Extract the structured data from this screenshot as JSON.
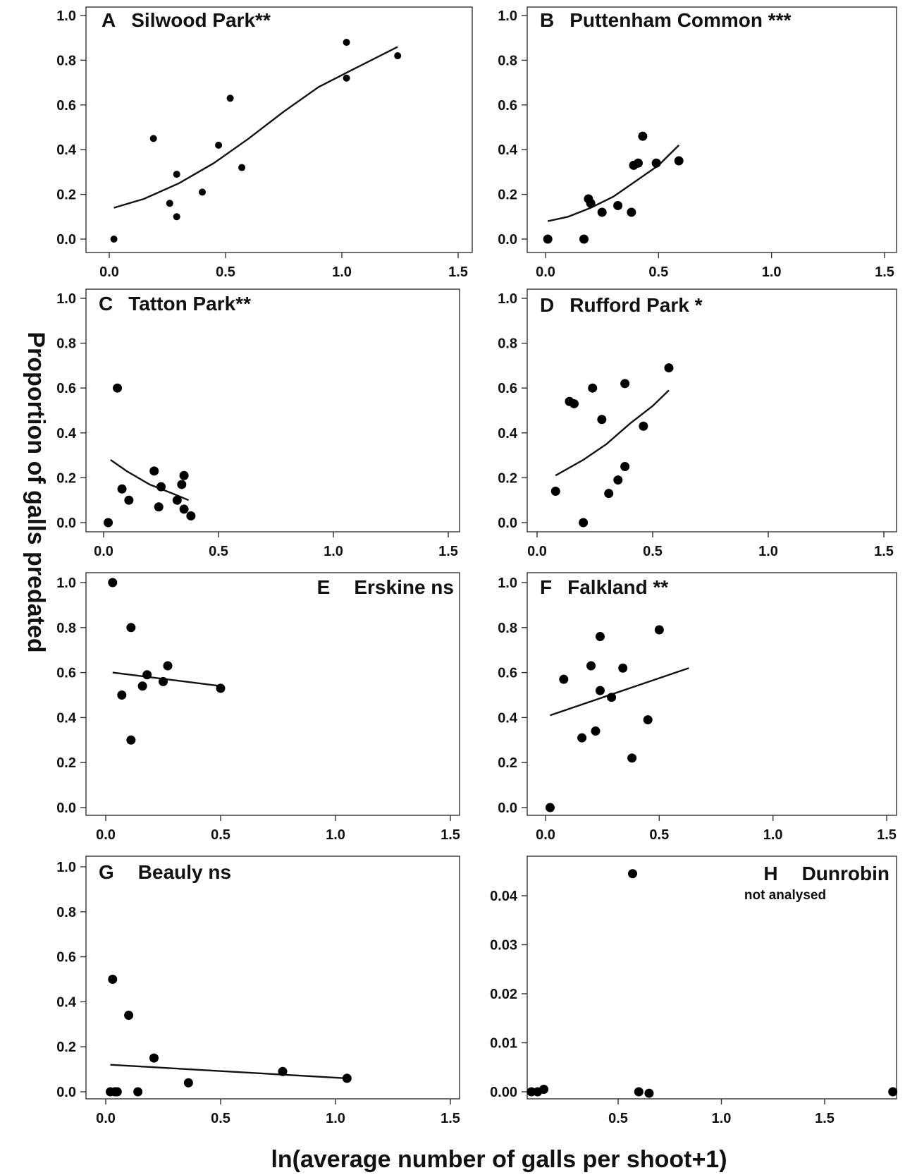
{
  "ylabel": "Proportion of galls predated",
  "xlabel": "ln(average number of galls per shoot+1)",
  "chart_data": [
    {
      "type": "scatter",
      "letter": "A",
      "title": "Silwood Park**",
      "subtitle": "",
      "xlim": [
        0,
        1.5
      ],
      "ylim": [
        0,
        1
      ],
      "xticks": [
        "0.0",
        "0.5",
        "1.0",
        "1.5"
      ],
      "yticks": [
        "0.0",
        "0.2",
        "0.4",
        "0.6",
        "0.8",
        "1.0"
      ],
      "points": [
        [
          0.02,
          0.0
        ],
        [
          0.19,
          0.45
        ],
        [
          0.26,
          0.16
        ],
        [
          0.29,
          0.29
        ],
        [
          0.29,
          0.1
        ],
        [
          0.4,
          0.21
        ],
        [
          0.47,
          0.42
        ],
        [
          0.52,
          0.63
        ],
        [
          0.57,
          0.32
        ],
        [
          1.02,
          0.88
        ],
        [
          1.02,
          0.72
        ],
        [
          1.24,
          0.82
        ]
      ],
      "fit": [
        [
          0.02,
          0.14
        ],
        [
          0.15,
          0.18
        ],
        [
          0.3,
          0.25
        ],
        [
          0.45,
          0.34
        ],
        [
          0.6,
          0.45
        ],
        [
          0.75,
          0.57
        ],
        [
          0.9,
          0.68
        ],
        [
          1.05,
          0.76
        ],
        [
          1.24,
          0.86
        ]
      ]
    },
    {
      "type": "scatter",
      "letter": "B",
      "title": "Puttenham Common ***",
      "subtitle": "",
      "xlim": [
        0,
        1.5
      ],
      "ylim": [
        0,
        1
      ],
      "xticks": [
        "0.0",
        "0.5",
        "1.0",
        "1.5"
      ],
      "yticks": [
        "0.0",
        "0.2",
        "0.4",
        "0.6",
        "0.8",
        "1.0"
      ],
      "points": [
        [
          0.01,
          0.0
        ],
        [
          0.17,
          0.0
        ],
        [
          0.19,
          0.18
        ],
        [
          0.2,
          0.16
        ],
        [
          0.25,
          0.12
        ],
        [
          0.32,
          0.15
        ],
        [
          0.38,
          0.12
        ],
        [
          0.39,
          0.33
        ],
        [
          0.41,
          0.34
        ],
        [
          0.43,
          0.46
        ],
        [
          0.49,
          0.34
        ],
        [
          0.59,
          0.35
        ]
      ],
      "fit": [
        [
          0.01,
          0.08
        ],
        [
          0.1,
          0.1
        ],
        [
          0.2,
          0.14
        ],
        [
          0.3,
          0.19
        ],
        [
          0.4,
          0.26
        ],
        [
          0.5,
          0.33
        ],
        [
          0.59,
          0.42
        ]
      ]
    },
    {
      "type": "scatter",
      "letter": "C",
      "title": "Tatton Park**",
      "subtitle": "",
      "xlim": [
        0,
        1.5
      ],
      "ylim": [
        0,
        1
      ],
      "xticks": [
        "0.0",
        "0.5",
        "1.0",
        "1.5"
      ],
      "yticks": [
        "0.0",
        "0.2",
        "0.4",
        "0.6",
        "0.8",
        "1.0"
      ],
      "points": [
        [
          0.02,
          0.0
        ],
        [
          0.06,
          0.6
        ],
        [
          0.08,
          0.15
        ],
        [
          0.11,
          0.1
        ],
        [
          0.22,
          0.23
        ],
        [
          0.24,
          0.07
        ],
        [
          0.25,
          0.16
        ],
        [
          0.32,
          0.1
        ],
        [
          0.34,
          0.17
        ],
        [
          0.35,
          0.21
        ],
        [
          0.35,
          0.06
        ],
        [
          0.38,
          0.03
        ]
      ],
      "fit": [
        [
          0.03,
          0.28
        ],
        [
          0.1,
          0.23
        ],
        [
          0.2,
          0.17
        ],
        [
          0.3,
          0.13
        ],
        [
          0.37,
          0.1
        ]
      ]
    },
    {
      "type": "scatter",
      "letter": "D",
      "title": "Rufford Park *",
      "subtitle": "",
      "xlim": [
        0,
        1.5
      ],
      "ylim": [
        0,
        1
      ],
      "xticks": [
        "0.0",
        "0.5",
        "1.0",
        "1.5"
      ],
      "yticks": [
        "0.0",
        "0.2",
        "0.4",
        "0.6",
        "0.8",
        "1.0"
      ],
      "points": [
        [
          0.08,
          0.14
        ],
        [
          0.14,
          0.54
        ],
        [
          0.16,
          0.53
        ],
        [
          0.2,
          0.0
        ],
        [
          0.24,
          0.6
        ],
        [
          0.28,
          0.46
        ],
        [
          0.31,
          0.13
        ],
        [
          0.35,
          0.19
        ],
        [
          0.38,
          0.62
        ],
        [
          0.38,
          0.25
        ],
        [
          0.46,
          0.43
        ],
        [
          0.57,
          0.69
        ]
      ],
      "fit": [
        [
          0.08,
          0.21
        ],
        [
          0.2,
          0.28
        ],
        [
          0.3,
          0.35
        ],
        [
          0.4,
          0.44
        ],
        [
          0.5,
          0.52
        ],
        [
          0.57,
          0.59
        ]
      ]
    },
    {
      "type": "scatter",
      "letter": "E",
      "title": "Erskine  ns",
      "subtitle": "",
      "xlim": [
        0,
        1.5
      ],
      "ylim": [
        0,
        1
      ],
      "xticks": [
        "0.0",
        "0.5",
        "1.0",
        "1.5"
      ],
      "yticks": [
        "0.0",
        "0.2",
        "0.4",
        "0.6",
        "0.8",
        "1.0"
      ],
      "points": [
        [
          0.03,
          1.0
        ],
        [
          0.07,
          0.5
        ],
        [
          0.11,
          0.8
        ],
        [
          0.11,
          0.3
        ],
        [
          0.16,
          0.54
        ],
        [
          0.18,
          0.59
        ],
        [
          0.25,
          0.56
        ],
        [
          0.27,
          0.63
        ],
        [
          0.5,
          0.53
        ]
      ],
      "fit": [
        [
          0.03,
          0.6
        ],
        [
          0.5,
          0.54
        ]
      ]
    },
    {
      "type": "scatter",
      "letter": "F",
      "title": "Falkland **",
      "subtitle": "",
      "xlim": [
        0,
        1.5
      ],
      "ylim": [
        0,
        1
      ],
      "xticks": [
        "0.0",
        "0.5",
        "1.0",
        "1.5"
      ],
      "yticks": [
        "0.0",
        "0.2",
        "0.4",
        "0.6",
        "0.8",
        "1.0"
      ],
      "points": [
        [
          0.02,
          0.0
        ],
        [
          0.08,
          0.57
        ],
        [
          0.16,
          0.31
        ],
        [
          0.2,
          0.63
        ],
        [
          0.22,
          0.34
        ],
        [
          0.24,
          0.76
        ],
        [
          0.24,
          0.52
        ],
        [
          0.29,
          0.49
        ],
        [
          0.34,
          0.62
        ],
        [
          0.38,
          0.22
        ],
        [
          0.45,
          0.39
        ],
        [
          0.5,
          0.79
        ]
      ],
      "fit": [
        [
          0.02,
          0.41
        ],
        [
          0.63,
          0.62
        ]
      ]
    },
    {
      "type": "scatter",
      "letter": "G",
      "title": "Beauly ns",
      "subtitle": "",
      "xlim": [
        0,
        1.5
      ],
      "ylim": [
        0,
        1
      ],
      "xticks": [
        "0.0",
        "0.5",
        "1.0",
        "1.5"
      ],
      "yticks": [
        "0.0",
        "0.2",
        "0.4",
        "0.6",
        "0.8",
        "1.0"
      ],
      "points": [
        [
          0.02,
          0.0
        ],
        [
          0.03,
          0.5
        ],
        [
          0.04,
          0.0
        ],
        [
          0.05,
          0.0
        ],
        [
          0.1,
          0.34
        ],
        [
          0.14,
          0.0
        ],
        [
          0.21,
          0.15
        ],
        [
          0.36,
          0.04
        ],
        [
          0.77,
          0.09
        ],
        [
          1.05,
          0.06
        ]
      ],
      "fit": [
        [
          0.02,
          0.12
        ],
        [
          1.05,
          0.06
        ]
      ]
    },
    {
      "type": "scatter",
      "letter": "H",
      "title": "Dunrobin",
      "subtitle": "not analysed",
      "xlim": [
        0,
        1.9
      ],
      "ylim": [
        0,
        0.045
      ],
      "xticks": [
        "0.5",
        "1.0",
        "1.5"
      ],
      "yticks": [
        "0.00",
        "0.01",
        "0.02",
        "0.03",
        "0.04"
      ],
      "points": [
        [
          0.08,
          0.0
        ],
        [
          0.11,
          0.0
        ],
        [
          0.14,
          0.0005
        ],
        [
          0.57,
          0.0445
        ],
        [
          0.6,
          0.0
        ],
        [
          0.65,
          -0.0003
        ],
        [
          1.83,
          0.0
        ]
      ],
      "fit": []
    }
  ]
}
